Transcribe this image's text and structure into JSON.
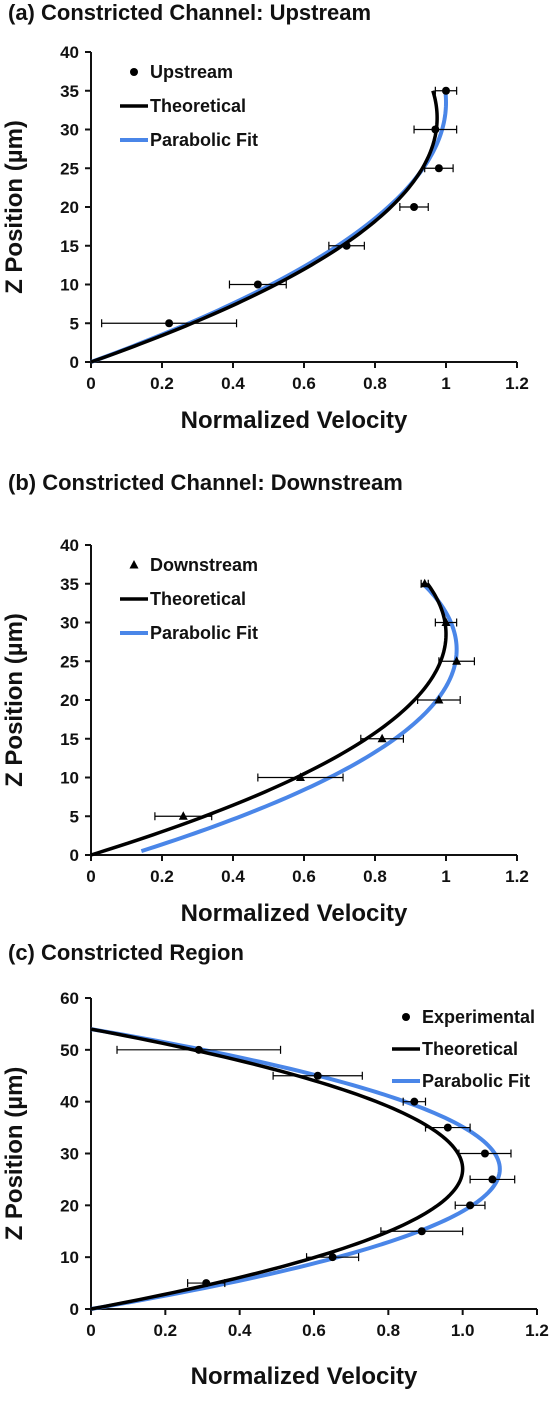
{
  "colors": {
    "theoretical": "#000000",
    "parabolic_fit": "#4a86e8",
    "points": "#000000",
    "axis": "#111111"
  },
  "chart_data": [
    {
      "type": "line",
      "panel_label": "(a) Constricted Channel: Upstream",
      "xlabel": "Normalized Velocity",
      "ylabel": "Z Position (µm)",
      "xlim": [
        0,
        1.2
      ],
      "ylim": [
        0,
        40
      ],
      "xticks": [
        "0",
        "0.2",
        "0.4",
        "0.6",
        "0.8",
        "1",
        "1.2"
      ],
      "yticks": [
        "0",
        "5",
        "10",
        "15",
        "20",
        "25",
        "30",
        "35",
        "40"
      ],
      "legend_position": "top-left",
      "grid": false,
      "marker": "circle",
      "series": [
        {
          "name": "Upstream",
          "kind": "points",
          "points": [
            [
              0.22,
              5
            ],
            [
              0.47,
              10
            ],
            [
              0.72,
              15
            ],
            [
              0.91,
              20
            ],
            [
              0.98,
              25
            ],
            [
              0.97,
              30
            ],
            [
              1.0,
              35
            ]
          ],
          "xerr": [
            0.19,
            0.08,
            0.05,
            0.04,
            0.04,
            0.06,
            0.03
          ]
        },
        {
          "name": "Theoretical",
          "kind": "curve",
          "vmax": 0.975,
          "zc": 31.5,
          "H": 31.5,
          "y_from": 0,
          "y_to": 35
        },
        {
          "name": "Parabolic Fit",
          "kind": "curve",
          "vmax": 1.0,
          "zc": 33.5,
          "H": 33.5,
          "y_from": 0,
          "y_to": 35
        }
      ]
    },
    {
      "type": "line",
      "panel_label": "(b)  Constricted Channel: Downstream",
      "xlabel": "Normalized Velocity",
      "ylabel": "Z Position (µm)",
      "xlim": [
        0,
        1.2
      ],
      "ylim": [
        0,
        40
      ],
      "xticks": [
        "0",
        "0.2",
        "0.4",
        "0.6",
        "0.8",
        "1",
        "1.2"
      ],
      "yticks": [
        "0",
        "5",
        "10",
        "15",
        "20",
        "25",
        "30",
        "35",
        "40"
      ],
      "legend_position": "top-left",
      "grid": false,
      "marker": "triangle",
      "series": [
        {
          "name": "Downstream",
          "kind": "points",
          "points": [
            [
              0.26,
              5
            ],
            [
              0.59,
              10
            ],
            [
              0.82,
              15
            ],
            [
              0.98,
              20
            ],
            [
              1.03,
              25
            ],
            [
              1.0,
              30
            ],
            [
              0.94,
              35
            ]
          ],
          "xerr": [
            0.08,
            0.12,
            0.06,
            0.06,
            0.05,
            0.03,
            0.01
          ]
        },
        {
          "name": "Theoretical",
          "kind": "curve",
          "vmax": 1.0,
          "zc": 28.5,
          "H": 28.5,
          "y_from": 0,
          "y_to": 35
        },
        {
          "name": "Parabolic Fit",
          "kind": "curve",
          "vmax": 1.03,
          "zc": 26.5,
          "H": 28.0,
          "y_from": 0.5,
          "y_to": 35
        }
      ]
    },
    {
      "type": "line",
      "panel_label": "(c)  Constricted Region",
      "xlabel": "Normalized Velocity",
      "ylabel": "Z Position (µm)",
      "xlim": [
        0,
        1.2
      ],
      "ylim": [
        0,
        60
      ],
      "xticks": [
        "0",
        "0.2",
        "0.4",
        "0.6",
        "0.8",
        "1.0",
        "1.2"
      ],
      "yticks": [
        "0",
        "10",
        "20",
        "30",
        "40",
        "50",
        "60"
      ],
      "legend_position": "top-right",
      "grid": false,
      "marker": "circle",
      "series": [
        {
          "name": "Experimental",
          "kind": "points",
          "points": [
            [
              0.31,
              5
            ],
            [
              0.65,
              10
            ],
            [
              0.89,
              15
            ],
            [
              1.02,
              20
            ],
            [
              1.08,
              25
            ],
            [
              1.06,
              30
            ],
            [
              0.96,
              35
            ],
            [
              0.87,
              40
            ],
            [
              0.61,
              45
            ],
            [
              0.29,
              50
            ]
          ],
          "xerr": [
            0.05,
            0.07,
            0.11,
            0.04,
            0.06,
            0.07,
            0.06,
            0.03,
            0.12,
            0.22
          ]
        },
        {
          "name": "Theoretical",
          "kind": "curve",
          "vmax": 1.0,
          "zc": 27,
          "H": 27,
          "y_from": 0,
          "y_to": 54
        },
        {
          "name": "Parabolic Fit",
          "kind": "curve",
          "vmax": 1.1,
          "zc": 27,
          "H": 27,
          "y_from": 0,
          "y_to": 54
        }
      ]
    }
  ]
}
